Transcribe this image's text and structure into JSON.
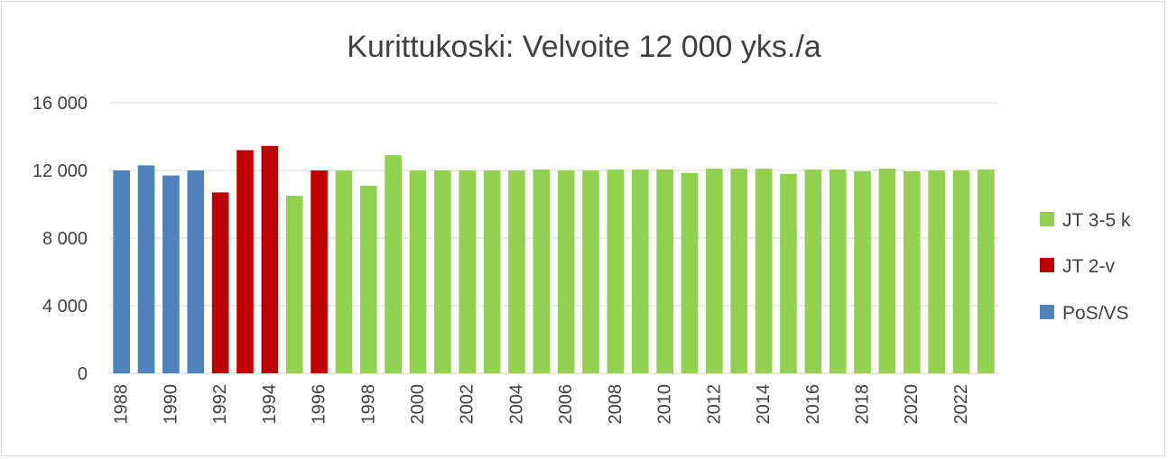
{
  "chart_data": {
    "type": "bar",
    "title": "Kurittukoski: Velvoite 12 000 yks./a",
    "xlabel": "",
    "ylabel": "",
    "ylim": [
      0,
      16000
    ],
    "y_ticks": [
      0,
      4000,
      8000,
      12000,
      16000
    ],
    "y_tick_labels": [
      "0",
      "4 000",
      "8 000",
      "12 000",
      "16 000"
    ],
    "x_tick_labels": [
      "1988",
      "1990",
      "1992",
      "1994",
      "1996",
      "1998",
      "2000",
      "2002",
      "2004",
      "2006",
      "2008",
      "2010",
      "2012",
      "2014",
      "2016",
      "2018",
      "2020",
      "2022"
    ],
    "grid": true,
    "legend_position": "right",
    "series": [
      {
        "name": "JT 3-5 k",
        "color": "#92d050"
      },
      {
        "name": "JT 2-v",
        "color": "#c00000"
      },
      {
        "name": "PoS/VS",
        "color": "#4f81bd"
      }
    ],
    "bars": [
      {
        "year": 1988,
        "value": 12000,
        "series": "PoS/VS"
      },
      {
        "year": 1989,
        "value": 12300,
        "series": "PoS/VS"
      },
      {
        "year": 1990,
        "value": 11700,
        "series": "PoS/VS"
      },
      {
        "year": 1991,
        "value": 12000,
        "series": "PoS/VS"
      },
      {
        "year": 1992,
        "value": 10700,
        "series": "JT 2-v"
      },
      {
        "year": 1993,
        "value": 13200,
        "series": "JT 2-v"
      },
      {
        "year": 1994,
        "value": 13450,
        "series": "JT 2-v"
      },
      {
        "year": 1995,
        "value": 10500,
        "series": "JT 3-5 k"
      },
      {
        "year": 1996,
        "value": 12000,
        "series": "JT 2-v"
      },
      {
        "year": 1997,
        "value": 12000,
        "series": "JT 3-5 k"
      },
      {
        "year": 1998,
        "value": 11100,
        "series": "JT 3-5 k"
      },
      {
        "year": 1999,
        "value": 12900,
        "series": "JT 3-5 k"
      },
      {
        "year": 2000,
        "value": 12000,
        "series": "JT 3-5 k"
      },
      {
        "year": 2001,
        "value": 12000,
        "series": "JT 3-5 k"
      },
      {
        "year": 2002,
        "value": 12000,
        "series": "JT 3-5 k"
      },
      {
        "year": 2003,
        "value": 12000,
        "series": "JT 3-5 k"
      },
      {
        "year": 2004,
        "value": 12000,
        "series": "JT 3-5 k"
      },
      {
        "year": 2005,
        "value": 12050,
        "series": "JT 3-5 k"
      },
      {
        "year": 2006,
        "value": 12000,
        "series": "JT 3-5 k"
      },
      {
        "year": 2007,
        "value": 12000,
        "series": "JT 3-5 k"
      },
      {
        "year": 2008,
        "value": 12050,
        "series": "JT 3-5 k"
      },
      {
        "year": 2009,
        "value": 12050,
        "series": "JT 3-5 k"
      },
      {
        "year": 2010,
        "value": 12050,
        "series": "JT 3-5 k"
      },
      {
        "year": 2011,
        "value": 11850,
        "series": "JT 3-5 k"
      },
      {
        "year": 2012,
        "value": 12100,
        "series": "JT 3-5 k"
      },
      {
        "year": 2013,
        "value": 12100,
        "series": "JT 3-5 k"
      },
      {
        "year": 2014,
        "value": 12100,
        "series": "JT 3-5 k"
      },
      {
        "year": 2015,
        "value": 11800,
        "series": "JT 3-5 k"
      },
      {
        "year": 2016,
        "value": 12050,
        "series": "JT 3-5 k"
      },
      {
        "year": 2017,
        "value": 12050,
        "series": "JT 3-5 k"
      },
      {
        "year": 2018,
        "value": 11950,
        "series": "JT 3-5 k"
      },
      {
        "year": 2019,
        "value": 12100,
        "series": "JT 3-5 k"
      },
      {
        "year": 2020,
        "value": 11950,
        "series": "JT 3-5 k"
      },
      {
        "year": 2021,
        "value": 12000,
        "series": "JT 3-5 k"
      },
      {
        "year": 2022,
        "value": 12000,
        "series": "JT 3-5 k"
      },
      {
        "year": 2023,
        "value": 12050,
        "series": "JT 3-5 k"
      }
    ]
  }
}
